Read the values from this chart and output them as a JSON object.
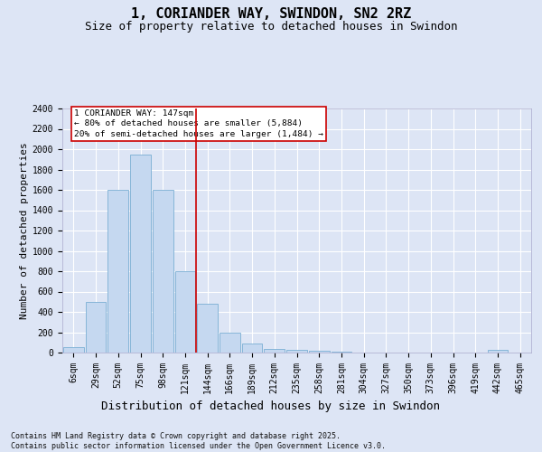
{
  "title": "1, CORIANDER WAY, SWINDON, SN2 2RZ",
  "subtitle": "Size of property relative to detached houses in Swindon",
  "xlabel": "Distribution of detached houses by size in Swindon",
  "ylabel": "Number of detached properties",
  "footer": "Contains HM Land Registry data © Crown copyright and database right 2025.\nContains public sector information licensed under the Open Government Licence v3.0.",
  "categories": [
    "6sqm",
    "29sqm",
    "52sqm",
    "75sqm",
    "98sqm",
    "121sqm",
    "144sqm",
    "166sqm",
    "189sqm",
    "212sqm",
    "235sqm",
    "258sqm",
    "281sqm",
    "304sqm",
    "327sqm",
    "350sqm",
    "373sqm",
    "396sqm",
    "419sqm",
    "442sqm",
    "465sqm"
  ],
  "values": [
    55,
    500,
    1600,
    1950,
    1600,
    800,
    480,
    195,
    90,
    40,
    30,
    15,
    10,
    2,
    2,
    2,
    2,
    2,
    2,
    25,
    2
  ],
  "bar_color": "#c5d8f0",
  "bar_edge_color": "#7bafd4",
  "vline_pos": 5.5,
  "vline_color": "#cc0000",
  "annotation_text": "1 CORIANDER WAY: 147sqm\n← 80% of detached houses are smaller (5,884)\n20% of semi-detached houses are larger (1,484) →",
  "annotation_box_edgecolor": "#cc0000",
  "annotation_fill": "#ffffff",
  "ylim": [
    0,
    2400
  ],
  "yticks": [
    0,
    200,
    400,
    600,
    800,
    1000,
    1200,
    1400,
    1600,
    1800,
    2000,
    2200,
    2400
  ],
  "bg_color": "#dde5f5",
  "grid_color": "#ffffff",
  "title_fontsize": 11,
  "subtitle_fontsize": 9,
  "tick_fontsize": 7,
  "ylabel_fontsize": 8,
  "xlabel_fontsize": 9,
  "footer_fontsize": 6
}
